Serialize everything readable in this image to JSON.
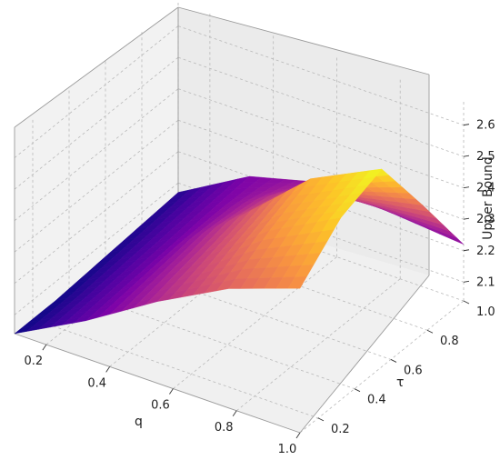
{
  "chart_data": {
    "type": "surface",
    "title": "",
    "xlabel": "q",
    "ylabel": "τ",
    "zlabel": "Upper Bound",
    "xlim": [
      0.1,
      1.0
    ],
    "ylim": [
      0.1,
      1.0
    ],
    "zlim": [
      2.04,
      2.68
    ],
    "x_ticks": [
      "0.2",
      "0.4",
      "0.6",
      "0.8",
      "1.0"
    ],
    "y_ticks": [
      "0.2",
      "0.4",
      "0.6",
      "0.8",
      "1.0"
    ],
    "z_ticks": [
      "2.1",
      "2.2",
      "2.3",
      "2.4",
      "2.5",
      "2.6"
    ],
    "colormap": "plasma",
    "grid": true,
    "surface": {
      "q": [
        0.1,
        0.325,
        0.55,
        0.775,
        1.0
      ],
      "tau": [
        0.1,
        0.325,
        0.55,
        0.775,
        1.0
      ],
      "z_rows_by_tau": [
        [
          2.04,
          2.16,
          2.3,
          2.42,
          2.5
        ],
        [
          2.04,
          2.17,
          2.33,
          2.5,
          2.62
        ],
        [
          2.05,
          2.18,
          2.36,
          2.56,
          2.67
        ],
        [
          2.06,
          2.19,
          2.33,
          2.4,
          2.45
        ],
        [
          2.07,
          2.2,
          2.26,
          2.24,
          2.22
        ]
      ]
    }
  }
}
